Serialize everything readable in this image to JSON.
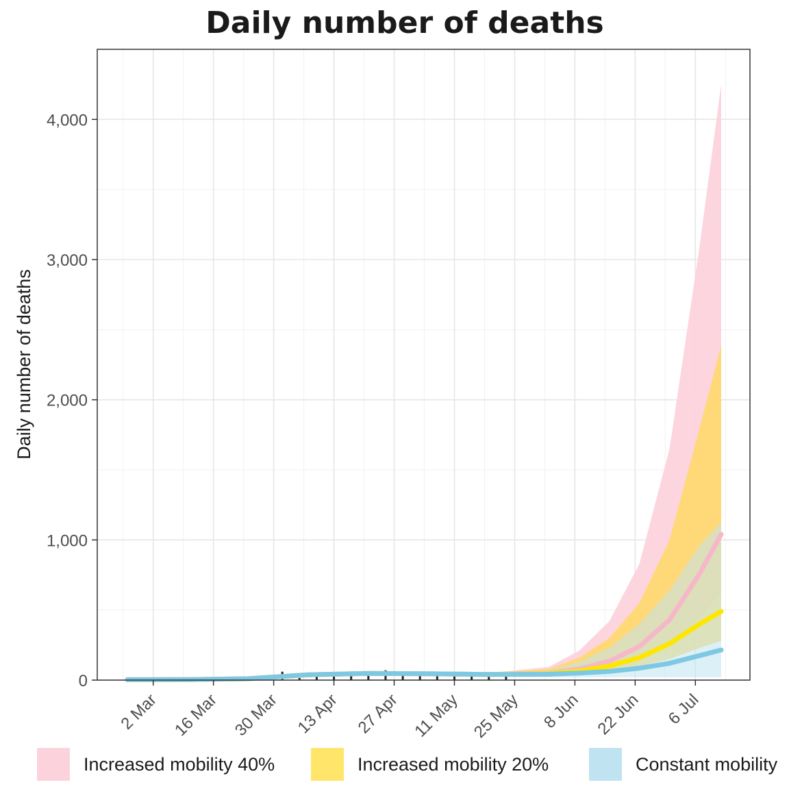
{
  "chart_data": {
    "type": "area",
    "title": "Daily number of deaths",
    "xlabel": "",
    "ylabel": "Daily number of deaths",
    "ylim": [
      0,
      4500
    ],
    "yticks": [
      0,
      1000,
      2000,
      3000,
      4000
    ],
    "ytick_labels": [
      "0",
      "1,000",
      "2,000",
      "3,000",
      "4,000"
    ],
    "x_tick_labels": [
      "2 Mar",
      "16 Mar",
      "30 Mar",
      "13 Apr",
      "27 Apr",
      "11 May",
      "25 May",
      "8 Jun",
      "22 Jun",
      "6 Jul"
    ],
    "x_start_label": "2 Mar",
    "x_end_label": "6 Jul",
    "grid": true,
    "legend_position": "bottom",
    "x": [
      "2020-02-25",
      "2020-03-10",
      "2020-03-24",
      "2020-04-07",
      "2020-04-21",
      "2020-05-05",
      "2020-05-19",
      "2020-06-02",
      "2020-06-09",
      "2020-06-16",
      "2020-06-23",
      "2020-06-30",
      "2020-07-07",
      "2020-07-12"
    ],
    "series": [
      {
        "name": "Increased mobility 40%",
        "color": "#fcd3dc",
        "line_color": "#f6b8c8",
        "median": [
          3,
          4,
          10,
          38,
          48,
          45,
          40,
          50,
          80,
          135,
          240,
          430,
          760,
          1040
        ],
        "lower": [
          2,
          3,
          7,
          30,
          40,
          38,
          33,
          38,
          55,
          85,
          140,
          240,
          450,
          620
        ],
        "upper": [
          5,
          6,
          14,
          46,
          58,
          54,
          50,
          95,
          210,
          420,
          830,
          1650,
          3100,
          4250
        ]
      },
      {
        "name": "Increased mobility 20%",
        "color": "#ffd966",
        "line_color": "#ffe600",
        "median": [
          3,
          4,
          10,
          38,
          48,
          45,
          40,
          47,
          65,
          100,
          160,
          260,
          400,
          490
        ],
        "lower": [
          2,
          3,
          7,
          30,
          40,
          38,
          33,
          35,
          48,
          68,
          100,
          150,
          230,
          280
        ],
        "upper": [
          5,
          6,
          14,
          46,
          58,
          54,
          48,
          80,
          160,
          300,
          550,
          1000,
          1800,
          2390
        ]
      },
      {
        "name": "Constant mobility",
        "color": "#bfe3f0",
        "line_color": "#7ec8e3",
        "median": [
          3,
          4,
          10,
          38,
          48,
          45,
          40,
          42,
          50,
          62,
          85,
          120,
          175,
          215
        ],
        "lower": [
          1,
          2,
          5,
          25,
          33,
          30,
          25,
          20,
          20,
          20,
          20,
          20,
          20,
          20
        ],
        "upper": [
          5,
          6,
          14,
          46,
          58,
          54,
          47,
          70,
          130,
          230,
          400,
          640,
          960,
          1130
        ]
      }
    ],
    "observed": {
      "x": [
        "2020-02-25",
        "2020-03-03",
        "2020-03-10",
        "2020-03-17",
        "2020-03-24",
        "2020-03-28",
        "2020-04-01",
        "2020-04-05",
        "2020-04-09",
        "2020-04-13",
        "2020-04-17",
        "2020-04-21",
        "2020-04-25",
        "2020-04-29",
        "2020-05-03",
        "2020-05-07",
        "2020-05-11",
        "2020-05-15",
        "2020-05-19",
        "2020-05-23"
      ],
      "values": [
        2,
        3,
        4,
        5,
        8,
        12,
        60,
        15,
        30,
        40,
        42,
        45,
        70,
        50,
        55,
        48,
        40,
        45,
        42,
        40
      ]
    }
  }
}
